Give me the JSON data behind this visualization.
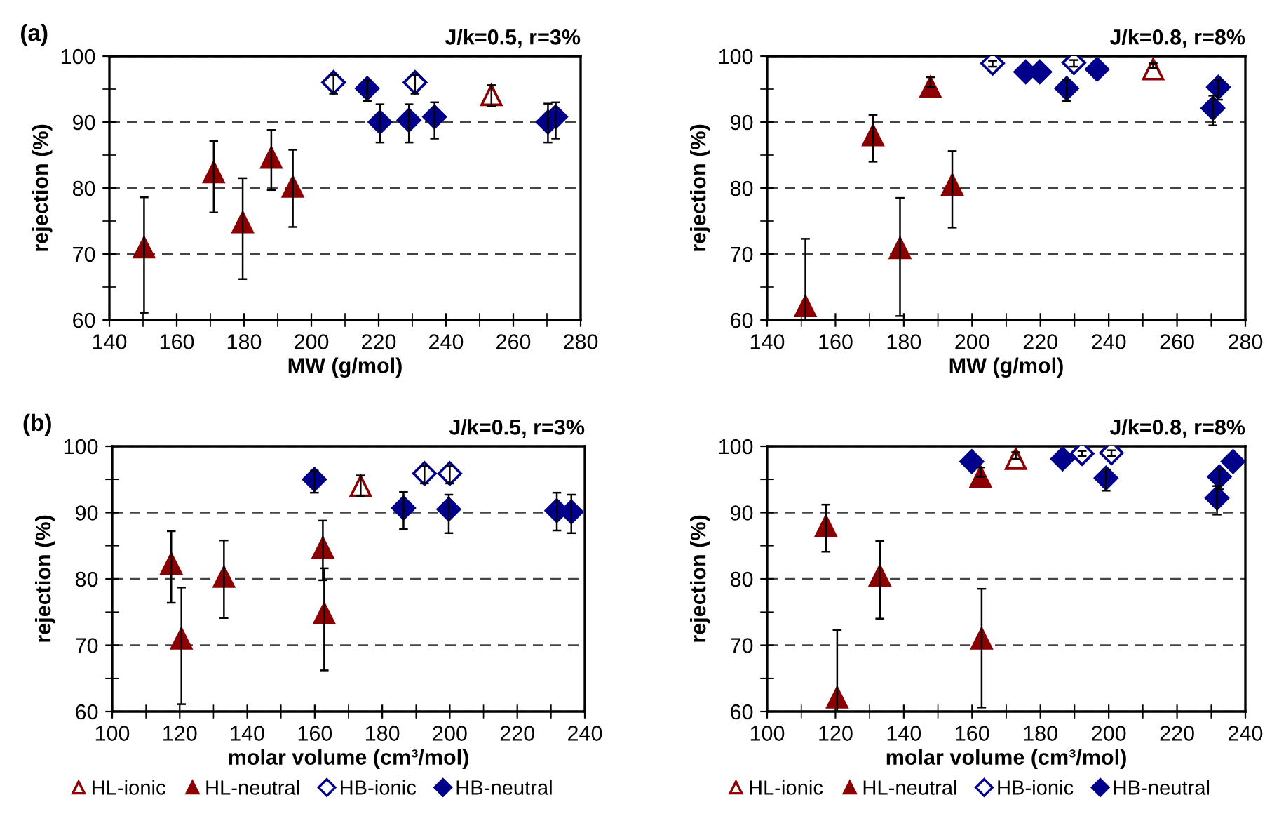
{
  "chart_data": [
    {
      "type": "scatter",
      "title": "J/k=0.5, r=3%",
      "xlabel": "MW (g/mol)",
      "ylabel": "rejection (%)",
      "annotations": [
        "(a)"
      ],
      "xlim": [
        140,
        280
      ],
      "xticks": [
        140,
        160,
        180,
        200,
        220,
        240,
        260,
        280
      ],
      "ylim": [
        60,
        100
      ],
      "yticks": [
        60,
        70,
        80,
        90,
        100
      ],
      "grid": "y",
      "legend": false,
      "series": [
        {
          "color": "#8b0000",
          "marker": "triangle-open",
          "x": [
            253.5
          ],
          "values": [
            94.1
          ],
          "errors": [
            [
              92.4,
              95.6
            ]
          ]
        },
        {
          "color": "#8b0000",
          "marker": "triangle",
          "x": [
            150.3,
            171,
            179.6,
            188.1,
            194.5
          ],
          "values": [
            71,
            82.4,
            74.8,
            84.6,
            80.2
          ],
          "errors": [
            [
              61.1,
              78.6
            ],
            [
              76.3,
              87.1
            ],
            [
              66.2,
              81.5
            ],
            [
              79.7,
              88.8
            ],
            [
              74.1,
              85.8
            ]
          ]
        },
        {
          "color": "#00008b",
          "marker": "diamond-open",
          "x": [
            206.6,
            230.8
          ],
          "values": [
            96,
            96
          ],
          "errors": [
            [
              94.3,
              97.1
            ],
            [
              94.3,
              97.1
            ]
          ]
        },
        {
          "color": "#00008b",
          "marker": "diamond",
          "x": [
            216.6,
            220.4,
            229,
            236.6,
            270.3,
            272.6
          ],
          "values": [
            95.1,
            90,
            90.3,
            90.8,
            90,
            90.8
          ],
          "errors": [
            [
              93.2,
              96.3
            ],
            [
              86.9,
              92.7
            ],
            [
              86.9,
              92.7
            ],
            [
              87.5,
              93
            ],
            [
              86.9,
              92.8
            ],
            [
              87.5,
              93
            ]
          ]
        }
      ]
    },
    {
      "type": "scatter",
      "title": "J/k=0.8, r=8%",
      "xlabel": "MW (g/mol)",
      "ylabel": "rejection (%)",
      "xlim": [
        140,
        280
      ],
      "xticks": [
        140,
        160,
        180,
        200,
        220,
        240,
        260,
        280
      ],
      "ylim": [
        60,
        100
      ],
      "yticks": [
        60,
        70,
        80,
        90,
        100
      ],
      "grid": "y",
      "legend": false,
      "series": [
        {
          "color": "#8b0000",
          "marker": "triangle-open",
          "x": [
            253
          ],
          "values": [
            98
          ],
          "errors": [
            [
              98.2,
              98.9
            ]
          ]
        },
        {
          "color": "#8b0000",
          "marker": "triangle",
          "x": [
            151.2,
            171,
            178.9,
            187.8,
            194.2
          ],
          "values": [
            62.1,
            88,
            70.9,
            95.3,
            80.5
          ],
          "errors": [
            [
              60,
              72.3
            ],
            [
              84,
              91.1
            ],
            [
              60.6,
              78.5
            ],
            [
              95.3,
              96.8
            ],
            [
              74,
              85.6
            ]
          ]
        },
        {
          "color": "#00008b",
          "marker": "diamond-open",
          "x": [
            206,
            229.8
          ],
          "values": [
            98.9,
            99
          ],
          "errors": [
            [
              98.4,
              99.3
            ],
            [
              98.4,
              99.4
            ]
          ]
        },
        {
          "color": "#00008b",
          "marker": "diamond",
          "x": [
            215.7,
            219.8,
            227.7,
            236.6,
            270.5,
            272.1
          ],
          "values": [
            97.6,
            97.6,
            95.1,
            98,
            92.1,
            95.3
          ],
          "errors": [
            null,
            null,
            [
              93.2,
              96.4
            ],
            null,
            [
              89.5,
              94
            ],
            [
              93.4,
              96.4
            ]
          ]
        }
      ]
    },
    {
      "type": "scatter",
      "title": "J/k=0.5, r=3%",
      "xlabel": "molar volume (cm³/mol)",
      "ylabel": "rejection (%)",
      "annotations": [
        "(b)"
      ],
      "xlim": [
        100,
        240
      ],
      "xticks": [
        100,
        120,
        140,
        160,
        180,
        200,
        220,
        240
      ],
      "ylim": [
        60,
        100
      ],
      "yticks": [
        60,
        70,
        80,
        90,
        100
      ],
      "grid": "y",
      "legend": "bottom",
      "series": [
        {
          "name": "HL-ionic",
          "color": "#8b0000",
          "marker": "triangle-open",
          "x": [
            173.6
          ],
          "values": [
            94
          ],
          "errors": [
            [
              92.5,
              95.6
            ]
          ]
        },
        {
          "name": "HL-neutral",
          "color": "#8b0000",
          "marker": "triangle",
          "x": [
            117.5,
            120.5,
            133.1,
            162.4,
            162.8
          ],
          "values": [
            82.3,
            71,
            80.3,
            84.7,
            74.8
          ],
          "errors": [
            [
              76.4,
              87.2
            ],
            [
              61.1,
              78.7
            ],
            [
              74.1,
              85.8
            ],
            [
              79.8,
              88.8
            ],
            [
              66.2,
              81.6
            ]
          ]
        },
        {
          "name": "HB-ionic",
          "color": "#00008b",
          "marker": "diamond-open",
          "x": [
            192.5,
            200
          ],
          "values": [
            95.9,
            95.9
          ],
          "errors": [
            [
              94.4,
              97
            ],
            [
              94.4,
              97
            ]
          ]
        },
        {
          "name": "HB-neutral",
          "color": "#00008b",
          "marker": "diamond",
          "x": [
            159.9,
            186.3,
            199.7,
            231.7,
            236
          ],
          "values": [
            95,
            90.7,
            90.5,
            90.3,
            90.1
          ],
          "errors": [
            [
              93,
              96.3
            ],
            [
              87.5,
              93.1
            ],
            [
              86.9,
              92.7
            ],
            [
              87.3,
              93
            ],
            [
              86.9,
              92.7
            ]
          ]
        }
      ]
    },
    {
      "type": "scatter",
      "title": "J/k=0.8, r=8%",
      "xlabel": "molar volume (cm³/mol)",
      "ylabel": "rejection (%)",
      "xlim": [
        100,
        240
      ],
      "xticks": [
        100,
        120,
        140,
        160,
        180,
        200,
        220,
        240
      ],
      "ylim": [
        60,
        100
      ],
      "yticks": [
        60,
        70,
        80,
        90,
        100
      ],
      "grid": "y",
      "legend": "bottom",
      "series": [
        {
          "name": "HL-ionic",
          "color": "#8b0000",
          "marker": "triangle-open",
          "x": [
            172.8
          ],
          "values": [
            98.1
          ],
          "errors": [
            [
              98.1,
              99.1
            ]
          ]
        },
        {
          "name": "HL-neutral",
          "color": "#8b0000",
          "marker": "triangle",
          "x": [
            117.2,
            120.5,
            133,
            162.5,
            162.8
          ],
          "values": [
            88,
            62.1,
            80.5,
            95.4,
            71
          ],
          "errors": [
            [
              84.1,
              91.2
            ],
            [
              60,
              72.3
            ],
            [
              74,
              85.7
            ],
            [
              95.4,
              96.8
            ],
            [
              60.6,
              78.5
            ]
          ]
        },
        {
          "name": "HB-ionic",
          "color": "#00008b",
          "marker": "diamond-open",
          "x": [
            192.2,
            200.8
          ],
          "values": [
            98.9,
            99
          ],
          "errors": [
            [
              98.5,
              99.3
            ],
            [
              98.5,
              99.4
            ]
          ]
        },
        {
          "name": "HB-neutral",
          "color": "#00008b",
          "marker": "diamond",
          "x": [
            159.9,
            186.5,
            199.2,
            231.7,
            232.4,
            236.4
          ],
          "values": [
            97.7,
            98.1,
            95.2,
            92.2,
            95.4,
            97.7
          ],
          "errors": [
            null,
            null,
            [
              93.3,
              96.5
            ],
            [
              89.7,
              94
            ],
            [
              93.5,
              96.5
            ],
            null
          ]
        }
      ]
    }
  ]
}
